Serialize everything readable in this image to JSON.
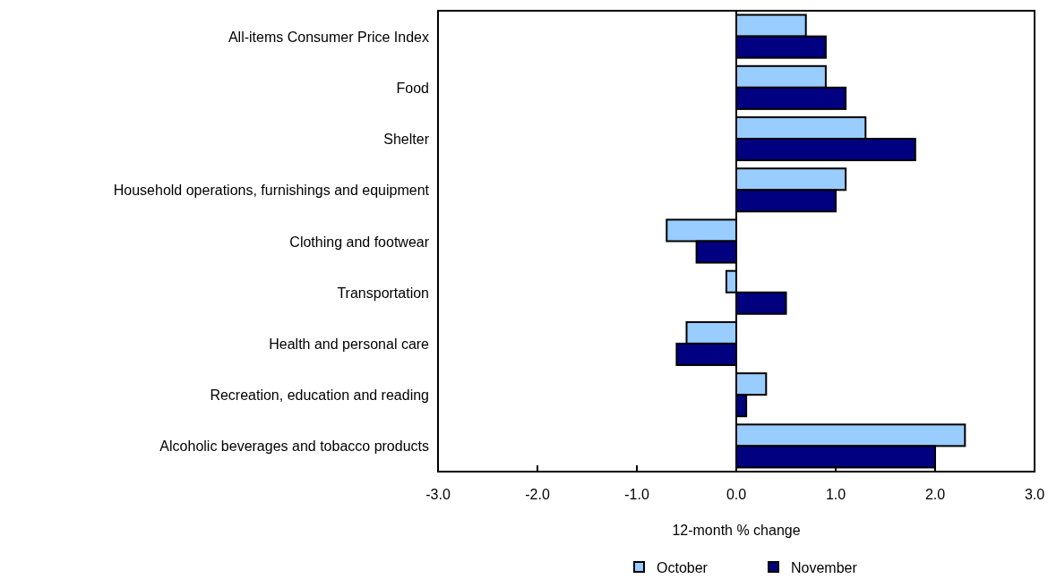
{
  "chart_data": {
    "type": "bar",
    "orientation": "horizontal",
    "xlabel": "12-month % change",
    "categories": [
      "All-items Consumer Price Index",
      "Food",
      "Shelter",
      "Household operations, furnishings and equipment",
      "Clothing and footwear",
      "Transportation",
      "Health and personal care",
      "Recreation, education and reading",
      "Alcoholic beverages and tobacco products"
    ],
    "series": [
      {
        "name": "October",
        "color": "#99ccff",
        "values": [
          0.7,
          0.9,
          1.3,
          1.1,
          -0.7,
          -0.1,
          -0.5,
          0.3,
          2.3
        ]
      },
      {
        "name": "November",
        "color": "#000080",
        "values": [
          0.9,
          1.1,
          1.8,
          1.0,
          -0.4,
          0.5,
          -0.6,
          0.1,
          2.0
        ]
      }
    ],
    "xlim": [
      -3.0,
      3.0
    ],
    "xticks": [
      {
        "value": -3,
        "label": "-3.0"
      },
      {
        "value": -2,
        "label": "-2.0"
      },
      {
        "value": -1,
        "label": "-1.0"
      },
      {
        "value": 0,
        "label": "0.0"
      },
      {
        "value": 1,
        "label": "1.0"
      },
      {
        "value": 2,
        "label": "2.0"
      },
      {
        "value": 3,
        "label": "3.0"
      }
    ],
    "legend": "bottom"
  }
}
